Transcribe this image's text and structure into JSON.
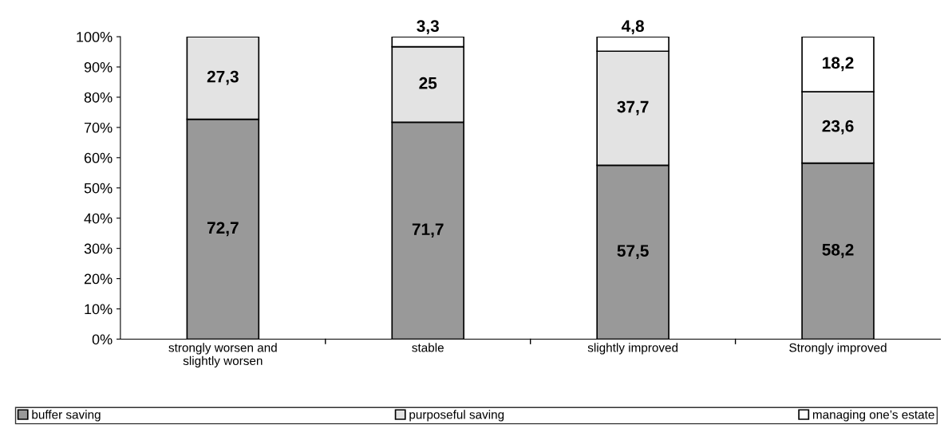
{
  "chart_data": {
    "type": "bar",
    "stacked": true,
    "categories": [
      "strongly worsen and\nslightly worsen",
      "stable",
      "slightly improved",
      "Strongly improved"
    ],
    "series": [
      {
        "name": "buffer saving",
        "color": "#999999",
        "values": [
          72.7,
          71.7,
          57.5,
          58.2
        ],
        "value_labels": [
          "72,7",
          "71,7",
          "57,5",
          "58,2"
        ]
      },
      {
        "name": "purposeful saving",
        "color": "#e3e3e3",
        "values": [
          27.3,
          25,
          37.7,
          23.6
        ],
        "value_labels": [
          "27,3",
          "25",
          "37,7",
          "23,6"
        ]
      },
      {
        "name": "managing one’s estate",
        "color": "#ffffff",
        "values": [
          null,
          3.3,
          4.8,
          18.2
        ],
        "value_labels": [
          null,
          "3,3",
          "4,8",
          "18,2"
        ]
      }
    ],
    "ylim": [
      0,
      100
    ],
    "yticks": [
      {
        "value": 0,
        "label": "0%"
      },
      {
        "value": 10,
        "label": "10%"
      },
      {
        "value": 20,
        "label": "20%"
      },
      {
        "value": 30,
        "label": "30%"
      },
      {
        "value": 40,
        "label": "40%"
      },
      {
        "value": 50,
        "label": "50%"
      },
      {
        "value": 60,
        "label": "60%"
      },
      {
        "value": 70,
        "label": "70%"
      },
      {
        "value": 80,
        "label": "80%"
      },
      {
        "value": 90,
        "label": "90%"
      },
      {
        "value": 100,
        "label": "100%"
      }
    ],
    "grid": false,
    "legend": "bottom"
  }
}
